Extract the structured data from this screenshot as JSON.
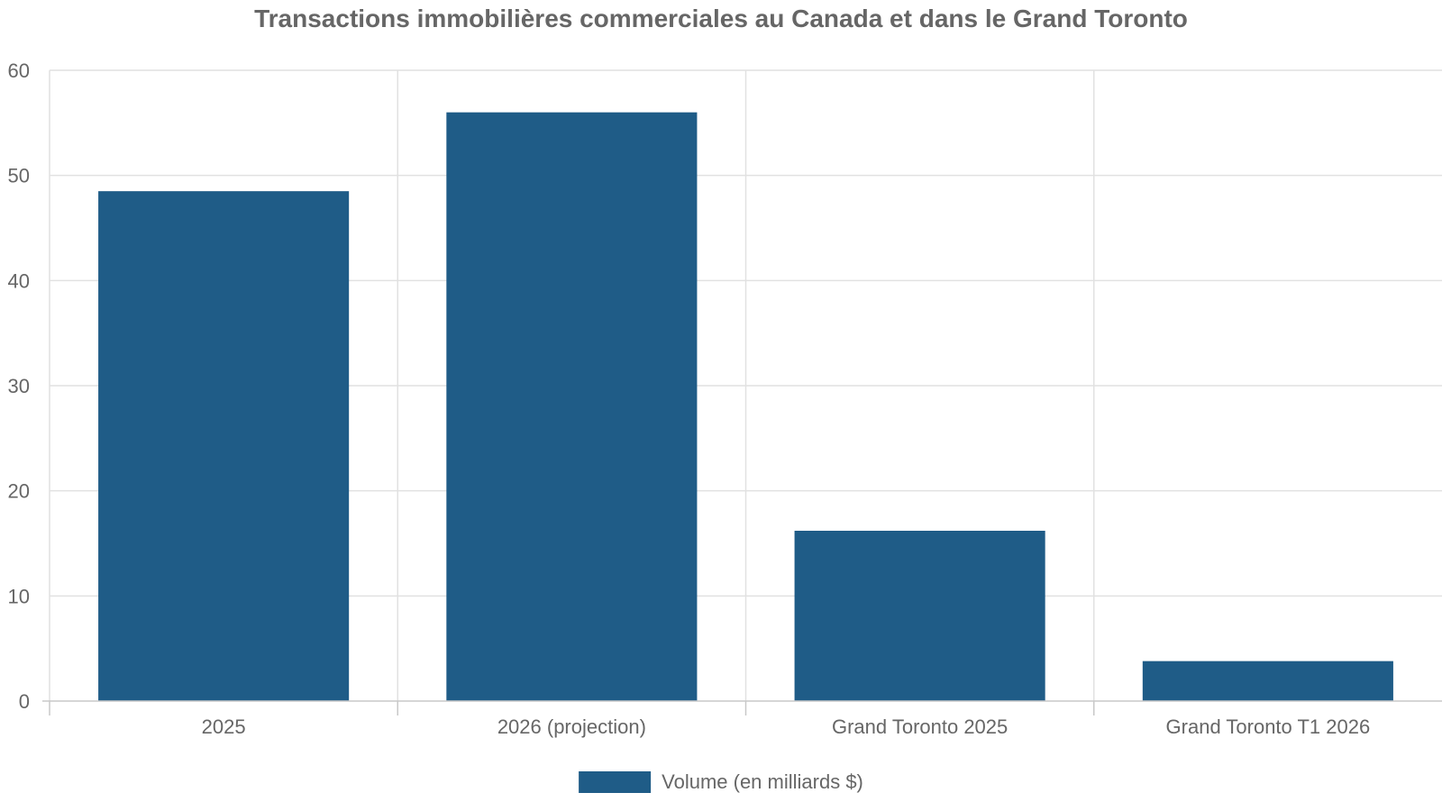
{
  "chart_data": {
    "type": "bar",
    "title": "Transactions immobilières commerciales au Canada et dans le Grand Toronto",
    "categories": [
      "2025",
      "2026 (projection)",
      "Grand Toronto 2025",
      "Grand Toronto T1 2026"
    ],
    "series": [
      {
        "name": "Volume (en milliards $)",
        "values": [
          48.5,
          56,
          16.2,
          3.8
        ],
        "color": "#1f5c87"
      }
    ],
    "xlabel": "",
    "ylabel": "",
    "ylim": [
      0,
      60
    ],
    "yticks": [
      "0",
      "10",
      "20",
      "30",
      "40",
      "50",
      "60"
    ],
    "grid": true,
    "legend_position": "bottom-center"
  }
}
